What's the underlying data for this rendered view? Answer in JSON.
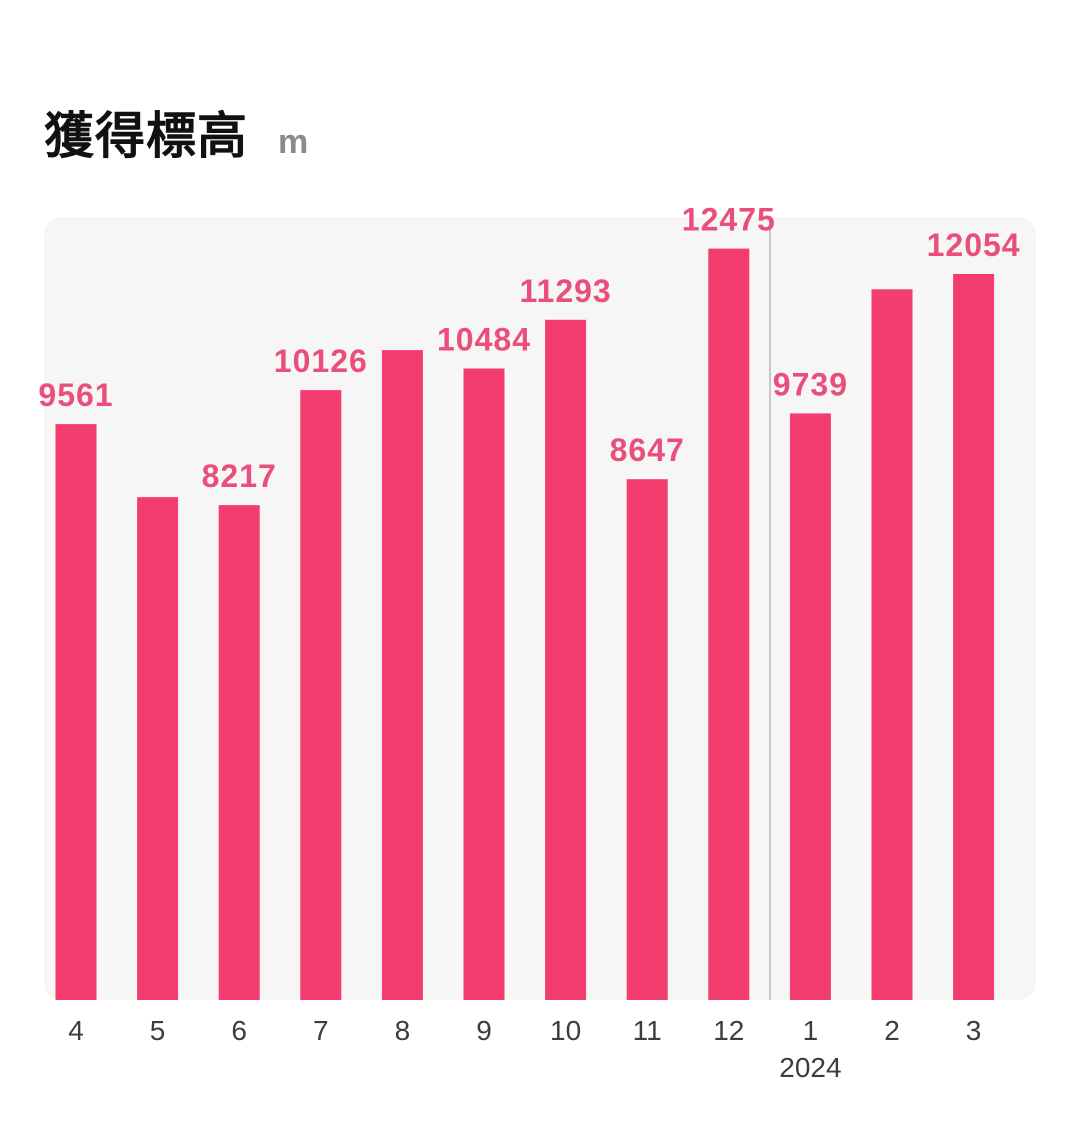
{
  "header": {
    "title": "獲得標高",
    "unit": "m"
  },
  "colors": {
    "bar": "#f33d6e",
    "value_label": "#ea4f7c",
    "plot_background": "#f6f6f6",
    "divider": "#c8c8cc",
    "tick_text": "#3c3c43"
  },
  "chart_data": {
    "type": "bar",
    "title": "獲得標高",
    "ylabel": "m",
    "xlabel": "",
    "categories": [
      "4",
      "5",
      "6",
      "7",
      "8",
      "9",
      "10",
      "11",
      "12",
      "1",
      "2",
      "3"
    ],
    "values": [
      9561,
      8350,
      8217,
      10126,
      10790,
      10484,
      11293,
      8647,
      12475,
      9739,
      11800,
      12054
    ],
    "data_labels": [
      "9561",
      "",
      "8217",
      "10126",
      "",
      "10484",
      "11293",
      "8647",
      "12475",
      "9739",
      "",
      "12054"
    ],
    "year_marker": {
      "before_category": "1",
      "label": "2024"
    },
    "ylim": [
      0,
      13000
    ],
    "grid": false,
    "legend": "none"
  }
}
